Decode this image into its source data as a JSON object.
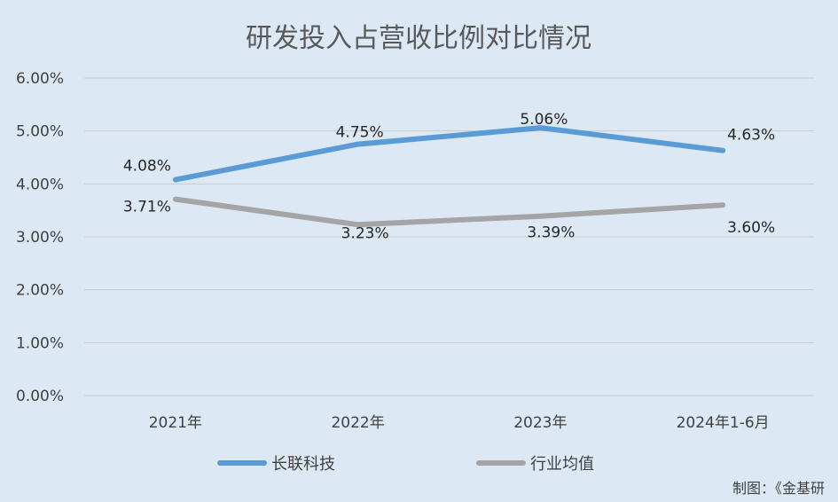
{
  "chart_data": {
    "type": "line",
    "title": "研发投入占营收比例对比情况",
    "categories": [
      "2021年",
      "2022年",
      "2023年",
      "2024年1-6月"
    ],
    "ylim": [
      0,
      6
    ],
    "yticks": [
      "0.00%",
      "1.00%",
      "2.00%",
      "3.00%",
      "4.00%",
      "5.00%",
      "6.00%"
    ],
    "grid": true,
    "legend_position": "bottom",
    "series": [
      {
        "name": "长联科技",
        "color": "#5b9bd5",
        "values": [
          4.08,
          4.75,
          5.06,
          4.63
        ],
        "labels": [
          "4.08%",
          "4.75%",
          "5.06%",
          "4.63%"
        ]
      },
      {
        "name": "行业均值",
        "color": "#a5a5a5",
        "values": [
          3.71,
          3.23,
          3.39,
          3.6
        ],
        "labels": [
          "3.71%",
          "3.23%",
          "3.39%",
          "3.60%"
        ]
      }
    ]
  },
  "credit": "制图：《金基研"
}
